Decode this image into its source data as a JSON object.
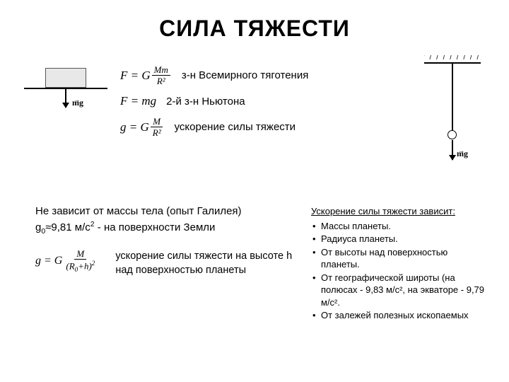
{
  "title": "СИЛА ТЯЖЕСТИ",
  "mg_label": "mg",
  "formulas": {
    "f1_lhs": "F = G",
    "f1_num": "Mm",
    "f1_den": "R²",
    "f1_desc": "з-н Всемирного тяготения",
    "f2_eq": "F = mg",
    "f2_desc": "2-й з-н Ньютона",
    "f3_lhs": "g = G",
    "f3_num": "M",
    "f3_den": "R²",
    "f3_desc": "ускорение силы тяжести"
  },
  "mid": {
    "line1": "Не зависит от массы тела (опыт Галилея)",
    "line2_a": "g",
    "line2_b": "0",
    "line2_c": "≈9,81 м/с",
    "line2_d": "2",
    "line2_e": " - на поверхности Земли"
  },
  "formula_h": {
    "lhs": "g = G",
    "num": "M",
    "den_a": "(R",
    "den_b": "0",
    "den_c": "+h)",
    "den_d": "2",
    "desc1": "ускорение силы тяжести на высоте h",
    "desc2": "над поверхностью планеты"
  },
  "depends": {
    "header": "Ускорение силы тяжести зависит:",
    "items": [
      "Массы планеты.",
      "Радиуса планеты.",
      "От высоты над поверхностью планеты.",
      "От географической широты (на полюсах - 9,83 м/с², на экваторе - 9,79 м/с².",
      "От залежей полезных ископаемых"
    ]
  }
}
